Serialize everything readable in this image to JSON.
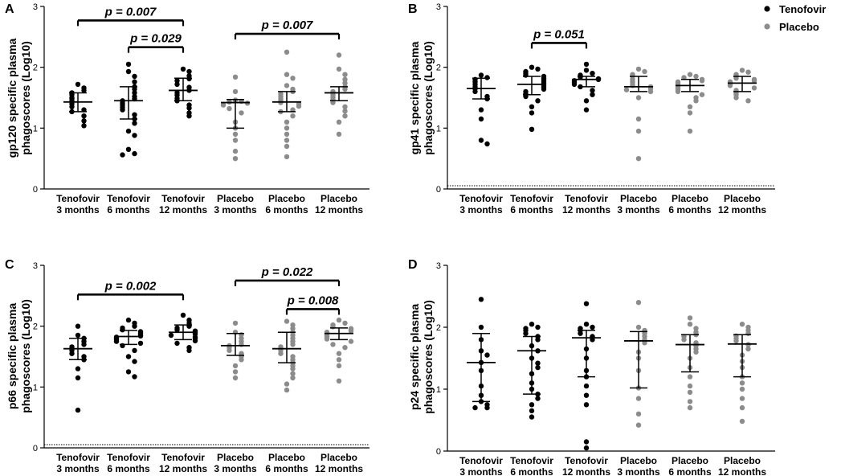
{
  "legend": {
    "position": "top-right",
    "entries": [
      {
        "label": "Tenofovir",
        "color": "#000000"
      },
      {
        "label": "Placebo",
        "color": "#8c8c8c"
      }
    ]
  },
  "categories": [
    [
      "Tenofovir",
      "3 months"
    ],
    [
      "Tenofovir",
      "6 months"
    ],
    [
      "Tenofovir",
      "12 months"
    ],
    [
      "Placebo",
      "3 months"
    ],
    [
      "Placebo",
      "6 months"
    ],
    [
      "Placebo",
      "12 months"
    ]
  ],
  "chart_data": [
    {
      "type": "scatter",
      "panel": "A",
      "ylabel_lines": [
        "gp120 specific plasma",
        "phagoscores (Log10)"
      ],
      "ylim": [
        0,
        3
      ],
      "yticks": [
        "0",
        "1",
        "2",
        "3"
      ],
      "dotted_baseline": false,
      "series": [
        {
          "name": "Tenofovir 3 months",
          "group": "Tenofovir",
          "median": 1.43,
          "iqr": [
            1.27,
            1.58
          ],
          "values": [
            1.72,
            1.66,
            1.62,
            1.58,
            1.55,
            1.5,
            1.48,
            1.44,
            1.4,
            1.35,
            1.3,
            1.27,
            1.2,
            1.12,
            1.04
          ]
        },
        {
          "name": "Tenofovir 6 months",
          "group": "Tenofovir",
          "median": 1.45,
          "iqr": [
            1.15,
            1.68
          ],
          "values": [
            2.05,
            1.93,
            1.85,
            1.76,
            1.68,
            1.64,
            1.58,
            1.52,
            1.48,
            1.45,
            1.41,
            1.38,
            1.34,
            1.3,
            1.22,
            1.15,
            1.08,
            0.95,
            0.88,
            0.65,
            0.58,
            0.56
          ]
        },
        {
          "name": "Tenofovir 12 months",
          "group": "Tenofovir",
          "median": 1.62,
          "iqr": [
            1.45,
            1.82
          ],
          "values": [
            1.97,
            1.93,
            1.86,
            1.81,
            1.78,
            1.72,
            1.67,
            1.62,
            1.58,
            1.54,
            1.49,
            1.45,
            1.38,
            1.33,
            1.25,
            1.2
          ]
        },
        {
          "name": "Placebo 3 months",
          "group": "Placebo",
          "median": 1.42,
          "iqr": [
            1.0,
            1.47
          ],
          "values": [
            1.84,
            1.6,
            1.46,
            1.44,
            1.43,
            1.41,
            1.38,
            1.32,
            1.25,
            1.1,
            1.0,
            0.9,
            0.8,
            0.62,
            0.5
          ]
        },
        {
          "name": "Placebo 6 months",
          "group": "Placebo",
          "median": 1.43,
          "iqr": [
            1.27,
            1.6
          ],
          "values": [
            2.25,
            1.88,
            1.82,
            1.7,
            1.64,
            1.6,
            1.56,
            1.52,
            1.48,
            1.45,
            1.42,
            1.4,
            1.36,
            1.3,
            1.27,
            1.2,
            1.1,
            1.0,
            0.9,
            0.8,
            0.7,
            0.53
          ]
        },
        {
          "name": "Placebo 12 months",
          "group": "Placebo",
          "median": 1.58,
          "iqr": [
            1.45,
            1.68
          ],
          "values": [
            2.2,
            1.97,
            1.88,
            1.8,
            1.74,
            1.68,
            1.64,
            1.6,
            1.57,
            1.54,
            1.5,
            1.46,
            1.42,
            1.35,
            1.28,
            1.2,
            1.1,
            0.9
          ]
        }
      ],
      "annotations": [
        {
          "label": "p = 0.007",
          "from": 0,
          "to": 2,
          "y": 2.77
        },
        {
          "label": "p = 0.029",
          "from": 1,
          "to": 2,
          "y": 2.33
        },
        {
          "label": "p = 0.007",
          "from": 3,
          "to": 5,
          "y": 2.55
        }
      ]
    },
    {
      "type": "scatter",
      "panel": "B",
      "ylabel_lines": [
        "gp41 specific plasma",
        "phagoscores (Log10)"
      ],
      "ylim": [
        0,
        3
      ],
      "yticks": [
        "0",
        "1",
        "2",
        "3"
      ],
      "dotted_baseline": true,
      "series": [
        {
          "name": "Tenofovir 3 months",
          "group": "Tenofovir",
          "median": 1.65,
          "iqr": [
            1.48,
            1.82
          ],
          "values": [
            1.87,
            1.83,
            1.8,
            1.76,
            1.72,
            1.68,
            1.65,
            1.6,
            1.52,
            1.48,
            1.3,
            1.15,
            0.8,
            0.74
          ]
        },
        {
          "name": "Tenofovir 6 months",
          "group": "Tenofovir",
          "median": 1.72,
          "iqr": [
            1.55,
            1.85
          ],
          "values": [
            2.0,
            1.97,
            1.93,
            1.9,
            1.87,
            1.85,
            1.82,
            1.8,
            1.77,
            1.74,
            1.72,
            1.7,
            1.67,
            1.64,
            1.6,
            1.56,
            1.52,
            1.45,
            1.35,
            1.25,
            0.98
          ]
        },
        {
          "name": "Tenofovir 12 months",
          "group": "Tenofovir",
          "median": 1.8,
          "iqr": [
            1.68,
            1.85
          ],
          "values": [
            2.05,
            1.95,
            1.9,
            1.87,
            1.84,
            1.81,
            1.8,
            1.78,
            1.75,
            1.72,
            1.68,
            1.62,
            1.55,
            1.45,
            1.3
          ]
        },
        {
          "name": "Placebo 3 months",
          "group": "Placebo",
          "median": 1.68,
          "iqr": [
            1.6,
            1.85
          ],
          "values": [
            1.97,
            1.93,
            1.88,
            1.85,
            1.8,
            1.76,
            1.72,
            1.7,
            1.68,
            1.65,
            1.63,
            1.6,
            1.5,
            1.15,
            0.95,
            0.5
          ]
        },
        {
          "name": "Placebo 6 months",
          "group": "Placebo",
          "median": 1.7,
          "iqr": [
            1.6,
            1.8
          ],
          "values": [
            1.88,
            1.85,
            1.83,
            1.8,
            1.78,
            1.76,
            1.74,
            1.72,
            1.7,
            1.68,
            1.66,
            1.64,
            1.62,
            1.6,
            1.55,
            1.5,
            1.45,
            1.35,
            1.25,
            0.95
          ]
        },
        {
          "name": "Placebo 12 months",
          "group": "Placebo",
          "median": 1.74,
          "iqr": [
            1.6,
            1.85
          ],
          "values": [
            1.95,
            1.92,
            1.88,
            1.85,
            1.82,
            1.8,
            1.78,
            1.76,
            1.74,
            1.72,
            1.7,
            1.66,
            1.62,
            1.58,
            1.55,
            1.5,
            1.45
          ]
        }
      ],
      "annotations": [
        {
          "label": "p = 0.051",
          "from": 1,
          "to": 2,
          "y": 2.4
        }
      ]
    },
    {
      "type": "scatter",
      "panel": "C",
      "ylabel_lines": [
        "p66 specific plasma",
        "phagoscores (Log10)"
      ],
      "ylim": [
        0,
        3
      ],
      "yticks": [
        "0",
        "1",
        "2",
        "3"
      ],
      "dotted_baseline": true,
      "series": [
        {
          "name": "Tenofovir 3 months",
          "group": "Tenofovir",
          "median": 1.63,
          "iqr": [
            1.45,
            1.8
          ],
          "values": [
            2.0,
            1.85,
            1.8,
            1.75,
            1.7,
            1.66,
            1.63,
            1.6,
            1.55,
            1.5,
            1.45,
            1.3,
            1.15,
            0.62
          ]
        },
        {
          "name": "Tenofovir 6 months",
          "group": "Tenofovir",
          "median": 1.83,
          "iqr": [
            1.7,
            1.93
          ],
          "values": [
            2.1,
            2.05,
            2.0,
            1.97,
            1.94,
            1.91,
            1.88,
            1.86,
            1.84,
            1.82,
            1.8,
            1.78,
            1.75,
            1.72,
            1.68,
            1.6,
            1.5,
            1.42,
            1.25,
            1.17
          ]
        },
        {
          "name": "Tenofovir 12 months",
          "group": "Tenofovir",
          "median": 1.9,
          "iqr": [
            1.78,
            2.02
          ],
          "values": [
            2.18,
            2.1,
            2.05,
            2.0,
            1.97,
            1.94,
            1.92,
            1.9,
            1.87,
            1.85,
            1.82,
            1.8,
            1.76,
            1.72,
            1.65,
            1.6
          ]
        },
        {
          "name": "Placebo 3 months",
          "group": "Placebo",
          "median": 1.68,
          "iqr": [
            1.52,
            1.88
          ],
          "values": [
            2.05,
            1.9,
            1.86,
            1.8,
            1.75,
            1.7,
            1.68,
            1.65,
            1.6,
            1.55,
            1.5,
            1.45,
            1.35,
            1.25,
            1.15
          ]
        },
        {
          "name": "Placebo 6 months",
          "group": "Placebo",
          "median": 1.63,
          "iqr": [
            1.4,
            1.9
          ],
          "values": [
            2.08,
            2.02,
            1.96,
            1.9,
            1.85,
            1.8,
            1.75,
            1.7,
            1.66,
            1.63,
            1.6,
            1.55,
            1.5,
            1.45,
            1.4,
            1.35,
            1.3,
            1.22,
            1.15,
            1.05,
            0.95
          ]
        },
        {
          "name": "Placebo 12 months",
          "group": "Placebo",
          "median": 1.88,
          "iqr": [
            1.78,
            1.97
          ],
          "values": [
            2.1,
            2.05,
            2.02,
            1.99,
            1.96,
            1.94,
            1.92,
            1.9,
            1.88,
            1.86,
            1.84,
            1.82,
            1.79,
            1.75,
            1.7,
            1.65,
            1.55,
            1.45,
            1.35,
            1.1
          ]
        }
      ],
      "annotations": [
        {
          "label": "p = 0.002",
          "from": 0,
          "to": 2,
          "y": 2.52
        },
        {
          "label": "p = 0.022",
          "from": 3,
          "to": 5,
          "y": 2.75
        },
        {
          "label": "p = 0.008",
          "from": 4,
          "to": 5,
          "y": 2.28
        }
      ]
    },
    {
      "type": "scatter",
      "panel": "D",
      "ylabel_lines": [
        "p24 specific plasma",
        "phagoscores (Log10)"
      ],
      "ylim": [
        0,
        3
      ],
      "yticks": [
        "0",
        "1",
        "2",
        "3"
      ],
      "dotted_baseline": false,
      "series": [
        {
          "name": "Tenofovir 3 months",
          "group": "Tenofovir",
          "median": 1.43,
          "iqr": [
            0.8,
            1.9
          ],
          "values": [
            2.45,
            2.0,
            1.8,
            1.62,
            1.55,
            1.43,
            1.3,
            1.05,
            0.9,
            0.8,
            0.75,
            0.7,
            0.7
          ]
        },
        {
          "name": "Tenofovir 6 months",
          "group": "Tenofovir",
          "median": 1.62,
          "iqr": [
            0.92,
            1.85
          ],
          "values": [
            2.05,
            2.0,
            1.98,
            1.95,
            1.9,
            1.85,
            1.8,
            1.7,
            1.62,
            1.5,
            1.42,
            1.35,
            1.25,
            1.1,
            1.0,
            0.92,
            0.85,
            0.75,
            0.65,
            0.55
          ]
        },
        {
          "name": "Tenofovir 12 months",
          "group": "Tenofovir",
          "median": 1.83,
          "iqr": [
            1.2,
            1.95
          ],
          "values": [
            2.38,
            2.05,
            2.0,
            1.98,
            1.95,
            1.9,
            1.85,
            1.8,
            1.65,
            1.5,
            1.3,
            1.2,
            1.05,
            0.9,
            0.75,
            0.15,
            0.05
          ]
        },
        {
          "name": "Placebo 3 months",
          "group": "Placebo",
          "median": 1.78,
          "iqr": [
            1.02,
            1.93
          ],
          "values": [
            2.4,
            2.0,
            1.95,
            1.9,
            1.85,
            1.8,
            1.75,
            1.6,
            1.5,
            1.3,
            1.02,
            0.85,
            0.6,
            0.42
          ]
        },
        {
          "name": "Placebo 6 months",
          "group": "Placebo",
          "median": 1.72,
          "iqr": [
            1.28,
            1.88
          ],
          "values": [
            2.15,
            2.05,
            1.98,
            1.92,
            1.88,
            1.85,
            1.8,
            1.75,
            1.7,
            1.65,
            1.6,
            1.5,
            1.35,
            1.2,
            1.05,
            0.95,
            0.8,
            0.7
          ]
        },
        {
          "name": "Placebo 12 months",
          "group": "Placebo",
          "median": 1.73,
          "iqr": [
            1.2,
            1.88
          ],
          "values": [
            2.05,
            2.0,
            1.95,
            1.9,
            1.86,
            1.82,
            1.78,
            1.72,
            1.65,
            1.55,
            1.45,
            1.35,
            1.2,
            1.1,
            1.0,
            0.85,
            0.7,
            0.48
          ]
        }
      ],
      "annotations": []
    }
  ]
}
